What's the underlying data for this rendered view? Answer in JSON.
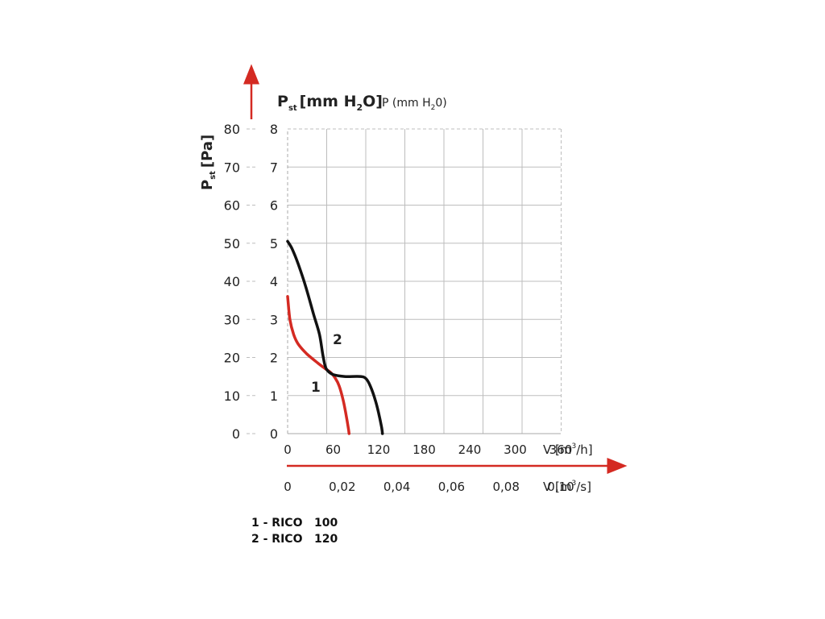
{
  "chart_data": {
    "type": "line",
    "y_left_title": "P",
    "y_left_title_sub": "st",
    "y_left_title_unit": "[Pa]",
    "y_left_ticks": [
      "0",
      "10",
      "20",
      "30",
      "40",
      "50",
      "60",
      "70",
      "80"
    ],
    "ylim_pa": [
      0,
      80
    ],
    "y_inner_title_prefix": "P",
    "y_inner_title_sub": "st",
    "y_inner_title_unit": "[mm H",
    "y_inner_title_unit_sub": "2",
    "y_inner_title_unit_end": "O]",
    "y_inner_title_alt": "P (mm H",
    "y_inner_title_alt_sub": "2",
    "y_inner_title_alt_end": "0)",
    "y_inner_ticks": [
      "0",
      "1",
      "2",
      "3",
      "4",
      "5",
      "6",
      "7",
      "8"
    ],
    "ylim_mmh2o": [
      0,
      8
    ],
    "x1_ticks": [
      "0",
      "60",
      "120",
      "180",
      "240",
      "300",
      "360"
    ],
    "x1_label": "V [m",
    "x1_label_sup": "3",
    "x1_label_end": "/h]",
    "xlim_m3h": [
      0,
      360
    ],
    "x2_ticks": [
      "0",
      "0,02",
      "0,04",
      "0,06",
      "0,08",
      "0,10"
    ],
    "x2_label": "V [m",
    "x2_label_sup": "3",
    "x2_label_end": "/s]",
    "grid": true,
    "series": [
      {
        "name": "1",
        "color": "#d42a22",
        "points": [
          [
            0,
            3.6
          ],
          [
            3,
            3.0
          ],
          [
            8,
            2.6
          ],
          [
            14,
            2.35
          ],
          [
            25,
            2.1
          ],
          [
            40,
            1.85
          ],
          [
            50,
            1.7
          ],
          [
            57,
            1.6
          ],
          [
            63,
            1.45
          ],
          [
            68,
            1.25
          ],
          [
            73,
            0.9
          ],
          [
            77,
            0.5
          ],
          [
            80,
            0.15
          ],
          [
            81,
            0
          ]
        ]
      },
      {
        "name": "2",
        "color": "#111111",
        "points": [
          [
            0,
            5.05
          ],
          [
            6,
            4.85
          ],
          [
            14,
            4.45
          ],
          [
            24,
            3.85
          ],
          [
            34,
            3.15
          ],
          [
            42,
            2.6
          ],
          [
            47,
            2.0
          ],
          [
            51,
            1.7
          ],
          [
            60,
            1.55
          ],
          [
            75,
            1.5
          ],
          [
            95,
            1.5
          ],
          [
            103,
            1.45
          ],
          [
            109,
            1.25
          ],
          [
            116,
            0.85
          ],
          [
            121,
            0.45
          ],
          [
            124,
            0.15
          ],
          [
            125,
            0
          ]
        ]
      }
    ],
    "legend": [
      {
        "label": "1 - RICO",
        "value": "100"
      },
      {
        "label": "2 - RICO",
        "value": "120"
      }
    ],
    "arrow_color": "#d42a22"
  }
}
